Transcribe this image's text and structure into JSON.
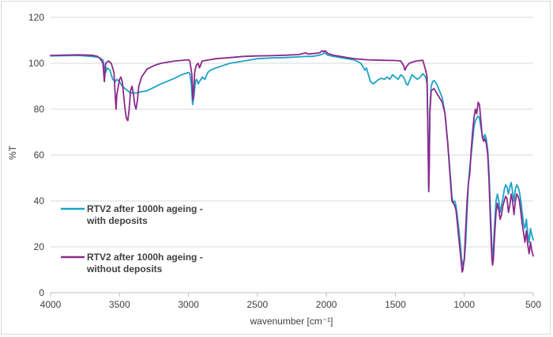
{
  "chart_data": {
    "type": "line",
    "title": "",
    "xlabel": "wavenumber [cm⁻¹]",
    "ylabel": "%T",
    "xlim": [
      4000,
      500
    ],
    "x_reversed": true,
    "ylim": [
      0,
      120
    ],
    "x_ticks": [
      4000,
      3500,
      3000,
      2500,
      2000,
      1500,
      1000,
      500
    ],
    "y_ticks": [
      0,
      20,
      40,
      60,
      80,
      100,
      120
    ],
    "grid": "horizontal",
    "legend_position": "left",
    "series": [
      {
        "name": "RTV2 after 1000h ageing - with deposits",
        "legend_lines": [
          "RTV2 after 1000h ageing -",
          "with deposits"
        ],
        "color": "#1ba3c6",
        "points": [
          [
            4000,
            103.2
          ],
          [
            3900,
            103.3
          ],
          [
            3800,
            103.4
          ],
          [
            3700,
            103.0
          ],
          [
            3650,
            102.6
          ],
          [
            3620,
            101.5
          ],
          [
            3610,
            98
          ],
          [
            3600,
            96
          ],
          [
            3590,
            98
          ],
          [
            3570,
            97
          ],
          [
            3550,
            93
          ],
          [
            3530,
            92
          ],
          [
            3520,
            93
          ],
          [
            3500,
            92
          ],
          [
            3480,
            90
          ],
          [
            3460,
            89
          ],
          [
            3440,
            88
          ],
          [
            3420,
            87
          ],
          [
            3400,
            87.2
          ],
          [
            3380,
            87
          ],
          [
            3350,
            87.5
          ],
          [
            3300,
            88
          ],
          [
            3250,
            89.5
          ],
          [
            3200,
            91
          ],
          [
            3100,
            93.5
          ],
          [
            3050,
            95
          ],
          [
            3000,
            96
          ],
          [
            2990,
            95.5
          ],
          [
            2980,
            91
          ],
          [
            2970,
            82
          ],
          [
            2960,
            86
          ],
          [
            2950,
            92
          ],
          [
            2940,
            93
          ],
          [
            2930,
            91
          ],
          [
            2920,
            92
          ],
          [
            2900,
            94
          ],
          [
            2880,
            93
          ],
          [
            2860,
            96
          ],
          [
            2840,
            97
          ],
          [
            2800,
            98
          ],
          [
            2700,
            100
          ],
          [
            2600,
            101
          ],
          [
            2500,
            102
          ],
          [
            2400,
            102.3
          ],
          [
            2300,
            102.5
          ],
          [
            2200,
            102.8
          ],
          [
            2150,
            103
          ],
          [
            2100,
            103
          ],
          [
            2050,
            103.5
          ],
          [
            2030,
            104
          ],
          [
            2010,
            104.5
          ],
          [
            2000,
            104
          ],
          [
            1990,
            103.5
          ],
          [
            1950,
            103
          ],
          [
            1900,
            102.5
          ],
          [
            1850,
            102
          ],
          [
            1800,
            101.5
          ],
          [
            1750,
            100
          ],
          [
            1720,
            97
          ],
          [
            1710,
            98
          ],
          [
            1700,
            96
          ],
          [
            1680,
            92
          ],
          [
            1660,
            91
          ],
          [
            1640,
            92
          ],
          [
            1620,
            93
          ],
          [
            1600,
            93.5
          ],
          [
            1580,
            93
          ],
          [
            1560,
            94
          ],
          [
            1540,
            93
          ],
          [
            1520,
            95
          ],
          [
            1500,
            94
          ],
          [
            1480,
            93
          ],
          [
            1460,
            95
          ],
          [
            1440,
            94
          ],
          [
            1420,
            91
          ],
          [
            1410,
            90.5
          ],
          [
            1400,
            92
          ],
          [
            1380,
            95
          ],
          [
            1360,
            94
          ],
          [
            1340,
            93
          ],
          [
            1320,
            94
          ],
          [
            1300,
            95.5
          ],
          [
            1280,
            94
          ],
          [
            1270,
            91
          ],
          [
            1260,
            60
          ],
          [
            1258,
            45
          ],
          [
            1255,
            52
          ],
          [
            1250,
            80
          ],
          [
            1240,
            90
          ],
          [
            1230,
            92
          ],
          [
            1220,
            92.5
          ],
          [
            1200,
            91
          ],
          [
            1180,
            88
          ],
          [
            1160,
            85
          ],
          [
            1140,
            78
          ],
          [
            1120,
            65
          ],
          [
            1100,
            50
          ],
          [
            1090,
            42
          ],
          [
            1080,
            39
          ],
          [
            1070,
            40
          ],
          [
            1060,
            38
          ],
          [
            1050,
            33
          ],
          [
            1040,
            28
          ],
          [
            1030,
            22
          ],
          [
            1020,
            15
          ],
          [
            1010,
            12
          ],
          [
            1000,
            14
          ],
          [
            990,
            22
          ],
          [
            980,
            35
          ],
          [
            970,
            48
          ],
          [
            960,
            55
          ],
          [
            950,
            60
          ],
          [
            940,
            66
          ],
          [
            930,
            72
          ],
          [
            920,
            75
          ],
          [
            910,
            76
          ],
          [
            900,
            77
          ],
          [
            890,
            76
          ],
          [
            880,
            72
          ],
          [
            870,
            69
          ],
          [
            860,
            67
          ],
          [
            850,
            69
          ],
          [
            840,
            67
          ],
          [
            830,
            62
          ],
          [
            820,
            52
          ],
          [
            810,
            35
          ],
          [
            800,
            20
          ],
          [
            795,
            14
          ],
          [
            790,
            18
          ],
          [
            780,
            30
          ],
          [
            770,
            40
          ],
          [
            760,
            43
          ],
          [
            750,
            40
          ],
          [
            740,
            35
          ],
          [
            730,
            38
          ],
          [
            720,
            41
          ],
          [
            710,
            45
          ],
          [
            700,
            47
          ],
          [
            690,
            46
          ],
          [
            680,
            43
          ],
          [
            670,
            46
          ],
          [
            660,
            48
          ],
          [
            650,
            44
          ],
          [
            640,
            40
          ],
          [
            630,
            45
          ],
          [
            620,
            47
          ],
          [
            610,
            46
          ],
          [
            600,
            44
          ],
          [
            590,
            40
          ],
          [
            580,
            35
          ],
          [
            570,
            30
          ],
          [
            560,
            28
          ],
          [
            550,
            32
          ],
          [
            540,
            26
          ],
          [
            530,
            22
          ],
          [
            520,
            28
          ],
          [
            510,
            25
          ],
          [
            500,
            23
          ]
        ]
      },
      {
        "name": "RTV2 after 1000h ageing - without deposits",
        "legend_lines": [
          "RTV2 after 1000h ageing -",
          "without deposits"
        ],
        "color": "#8b2a8b",
        "points": [
          [
            4000,
            103.4
          ],
          [
            3900,
            103.6
          ],
          [
            3800,
            103.7
          ],
          [
            3700,
            103.5
          ],
          [
            3660,
            103
          ],
          [
            3640,
            102
          ],
          [
            3620,
            100
          ],
          [
            3615,
            96
          ],
          [
            3610,
            92
          ],
          [
            3605,
            96
          ],
          [
            3600,
            100
          ],
          [
            3580,
            101
          ],
          [
            3560,
            100
          ],
          [
            3540,
            96
          ],
          [
            3530,
            85
          ],
          [
            3525,
            80
          ],
          [
            3520,
            86
          ],
          [
            3500,
            93
          ],
          [
            3490,
            94
          ],
          [
            3480,
            92
          ],
          [
            3470,
            86
          ],
          [
            3460,
            80
          ],
          [
            3450,
            76
          ],
          [
            3440,
            75
          ],
          [
            3430,
            80
          ],
          [
            3420,
            88
          ],
          [
            3410,
            90
          ],
          [
            3400,
            87
          ],
          [
            3390,
            82
          ],
          [
            3380,
            80
          ],
          [
            3370,
            84
          ],
          [
            3360,
            90
          ],
          [
            3340,
            94
          ],
          [
            3300,
            97.5
          ],
          [
            3250,
            99
          ],
          [
            3200,
            100
          ],
          [
            3100,
            101
          ],
          [
            3000,
            101.5
          ],
          [
            2990,
            101
          ],
          [
            2975,
            95
          ],
          [
            2968,
            84
          ],
          [
            2962,
            88
          ],
          [
            2955,
            96
          ],
          [
            2945,
            99
          ],
          [
            2930,
            100
          ],
          [
            2920,
            98
          ],
          [
            2910,
            99.5
          ],
          [
            2900,
            101
          ],
          [
            2850,
            101.5
          ],
          [
            2800,
            102
          ],
          [
            2700,
            102.5
          ],
          [
            2600,
            103
          ],
          [
            2500,
            103.2
          ],
          [
            2400,
            103.3
          ],
          [
            2300,
            103.5
          ],
          [
            2200,
            103.8
          ],
          [
            2150,
            104.5
          ],
          [
            2130,
            104
          ],
          [
            2100,
            104.2
          ],
          [
            2050,
            104.5
          ],
          [
            2030,
            105.5
          ],
          [
            2020,
            105
          ],
          [
            2010,
            105.5
          ],
          [
            2000,
            105
          ],
          [
            1990,
            104.3
          ],
          [
            1950,
            103.5
          ],
          [
            1900,
            103
          ],
          [
            1850,
            102.5
          ],
          [
            1800,
            102
          ],
          [
            1700,
            101.5
          ],
          [
            1600,
            101.3
          ],
          [
            1500,
            101.2
          ],
          [
            1460,
            101
          ],
          [
            1440,
            99
          ],
          [
            1430,
            97
          ],
          [
            1420,
            98.5
          ],
          [
            1400,
            100
          ],
          [
            1350,
            101
          ],
          [
            1300,
            101.3
          ],
          [
            1290,
            99
          ],
          [
            1280,
            97
          ],
          [
            1270,
            94
          ],
          [
            1262,
            60
          ],
          [
            1258,
            44
          ],
          [
            1254,
            55
          ],
          [
            1250,
            78
          ],
          [
            1240,
            88
          ],
          [
            1220,
            89
          ],
          [
            1200,
            87
          ],
          [
            1180,
            85
          ],
          [
            1160,
            83
          ],
          [
            1140,
            78
          ],
          [
            1120,
            65
          ],
          [
            1100,
            48
          ],
          [
            1090,
            40
          ],
          [
            1080,
            39
          ],
          [
            1070,
            38
          ],
          [
            1060,
            36
          ],
          [
            1050,
            30
          ],
          [
            1040,
            24
          ],
          [
            1030,
            18
          ],
          [
            1020,
            12
          ],
          [
            1015,
            9
          ],
          [
            1010,
            10
          ],
          [
            1000,
            15
          ],
          [
            990,
            28
          ],
          [
            980,
            40
          ],
          [
            970,
            48
          ],
          [
            960,
            52
          ],
          [
            950,
            62
          ],
          [
            940,
            70
          ],
          [
            930,
            76
          ],
          [
            920,
            80
          ],
          [
            910,
            78
          ],
          [
            900,
            83
          ],
          [
            890,
            82
          ],
          [
            880,
            75
          ],
          [
            870,
            68
          ],
          [
            860,
            66
          ],
          [
            850,
            67
          ],
          [
            840,
            65
          ],
          [
            830,
            60
          ],
          [
            820,
            48
          ],
          [
            810,
            30
          ],
          [
            800,
            15
          ],
          [
            795,
            12
          ],
          [
            790,
            14
          ],
          [
            780,
            25
          ],
          [
            770,
            35
          ],
          [
            760,
            39
          ],
          [
            750,
            36
          ],
          [
            740,
            32
          ],
          [
            730,
            34
          ],
          [
            720,
            38
          ],
          [
            710,
            40
          ],
          [
            700,
            42
          ],
          [
            690,
            41
          ],
          [
            680,
            35
          ],
          [
            670,
            38
          ],
          [
            660,
            43
          ],
          [
            650,
            40
          ],
          [
            640,
            34
          ],
          [
            630,
            40
          ],
          [
            620,
            43
          ],
          [
            610,
            42
          ],
          [
            600,
            40
          ],
          [
            590,
            35
          ],
          [
            580,
            30
          ],
          [
            570,
            26
          ],
          [
            560,
            22
          ],
          [
            550,
            27
          ],
          [
            540,
            21
          ],
          [
            530,
            17
          ],
          [
            520,
            22
          ],
          [
            510,
            18
          ],
          [
            500,
            16
          ]
        ]
      }
    ]
  }
}
